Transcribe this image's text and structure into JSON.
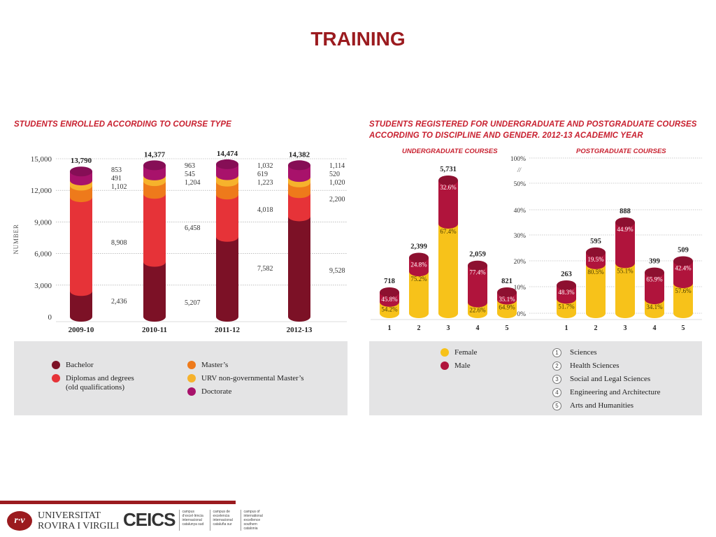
{
  "slide": {
    "title": "TRAINING"
  },
  "left_chart": {
    "heading": "STUDENTS ENROLLED ACCORDING TO COURSE TYPE",
    "legend": [
      {
        "label": "Bachelor",
        "color": "#7c1126"
      },
      {
        "label": "Diplomas and degrees\n(old qualifications)",
        "color": "#e63338"
      },
      {
        "label": "Master’s",
        "color": "#ee7a1b"
      },
      {
        "label": "URV non-governmental Master’s",
        "color": "#f6b22c"
      },
      {
        "label": "Doctorate",
        "color": "#a8126b"
      }
    ]
  },
  "right_chart": {
    "heading": "STUDENTS REGISTERED FOR UNDERGRADUATE AND POSTGRADUATE COURSES\nACCORDING TO DISCIPLINE AND GENDER. 2012-13 ACADEMIC YEAR",
    "undergrad_heading": "UNDERGRADUATE COURSES",
    "postgrad_heading": "POSTGRADUATE COURSES",
    "gender_legend": [
      {
        "label": "Female",
        "color": "#f7c21a"
      },
      {
        "label": "Male",
        "color": "#b0143c"
      }
    ],
    "discipline_legend": [
      {
        "num": "1",
        "label": "Sciences"
      },
      {
        "num": "2",
        "label": "Health Sciences"
      },
      {
        "num": "3",
        "label": "Social and Legal Sciences"
      },
      {
        "num": "4",
        "label": "Engineering and Architecture"
      },
      {
        "num": "5",
        "label": "Arts and Humanities"
      }
    ]
  },
  "footer": {
    "urv_logo": "Universitat Rovira i Virgili",
    "urv_line1": "UNIVERSITAT",
    "urv_line2": "ROVIRA I VIRGILI",
    "cei_logo": "CEICS",
    "cei_col1": "campus d’excel·lència internacional catalunya sud",
    "cei_col2": "campus de excelencia internacional cataluña sur",
    "cei_col3": "campus of international excellence southern catalonia"
  },
  "chart_data": [
    {
      "type": "bar",
      "stacked": true,
      "title": "STUDENTS ENROLLED ACCORDING TO COURSE TYPE",
      "ylabel": "NUMBER",
      "ylim": [
        0,
        15000
      ],
      "yticks": [
        "0",
        "3,000",
        "6,000",
        "9,000",
        "12,000",
        "15,000"
      ],
      "ytick_values": [
        0,
        3000,
        6000,
        9000,
        12000,
        15000
      ],
      "categories": [
        "2009-10",
        "2010-11",
        "2011-12",
        "2012-13"
      ],
      "totals": [
        "13,790",
        "14,377",
        "14,474",
        "14,382"
      ],
      "series": [
        {
          "name": "Bachelor",
          "color": "#7c1126",
          "values": [
            2436,
            5207,
            7582,
            9528
          ],
          "labels": [
            "2,436",
            "5,207",
            "7,582",
            "9,528"
          ]
        },
        {
          "name": "Diplomas and degrees (old qualifications)",
          "color": "#e63338",
          "values": [
            8908,
            6458,
            4018,
            2200
          ],
          "labels": [
            "8,908",
            "6,458",
            "4,018",
            "2,200"
          ]
        },
        {
          "name": "Master’s",
          "color": "#ee7a1b",
          "values": [
            1102,
            1204,
            1223,
            1020
          ],
          "labels": [
            "1,102",
            "1,204",
            "1,223",
            "1,020"
          ]
        },
        {
          "name": "URV non-governmental Master’s",
          "color": "#f6b22c",
          "values": [
            491,
            545,
            619,
            520
          ],
          "labels": [
            "491",
            "545",
            "619",
            "520"
          ]
        },
        {
          "name": "Doctorate",
          "color": "#a8126b",
          "values": [
            853,
            963,
            1032,
            1114
          ],
          "labels": [
            "853",
            "963",
            "1,032",
            "1,114"
          ]
        }
      ]
    },
    {
      "type": "bar",
      "stacked": true,
      "title": "UNDERGRADUATE COURSES",
      "categories": [
        "1",
        "2",
        "3",
        "4",
        "5"
      ],
      "totals": [
        718,
        2399,
        5731,
        2059,
        821
      ],
      "total_labels": [
        "718",
        "2,399",
        "5,731",
        "2,059",
        "821"
      ],
      "series": [
        {
          "name": "Female",
          "color": "#f7c21a",
          "percent": [
            54.2,
            75.2,
            67.4,
            22.6,
            64.9
          ],
          "labels": [
            "54.2%",
            "75.2%",
            "67.4%",
            "22.6%",
            "64.9%"
          ]
        },
        {
          "name": "Male",
          "color": "#b0143c",
          "percent": [
            45.8,
            24.8,
            32.6,
            77.4,
            35.1
          ],
          "labels": [
            "45.8%",
            "24.8%",
            "32.6%",
            "77.4%",
            "35.1%"
          ]
        }
      ]
    },
    {
      "type": "bar",
      "stacked": true,
      "title": "POSTGRADUATE COURSES",
      "yticks": [
        "0%",
        "10%",
        "20%",
        "30%",
        "40%",
        "50%",
        "100%"
      ],
      "axis_break": "//",
      "categories": [
        "1",
        "2",
        "3",
        "4",
        "5"
      ],
      "totals": [
        263,
        595,
        888,
        399,
        509
      ],
      "total_labels": [
        "263",
        "595",
        "888",
        "399",
        "509"
      ],
      "series": [
        {
          "name": "Female",
          "color": "#f7c21a",
          "percent": [
            51.7,
            80.5,
            55.1,
            34.1,
            57.6
          ],
          "labels": [
            "51.7%",
            "80.5%",
            "55.1%",
            "34.1%",
            "57.6%"
          ]
        },
        {
          "name": "Male",
          "color": "#b0143c",
          "percent": [
            48.3,
            19.5,
            44.9,
            65.9,
            42.4
          ],
          "labels": [
            "48.3%",
            "19.5%",
            "44.9%",
            "65.9%",
            "42.4%"
          ]
        }
      ]
    }
  ]
}
